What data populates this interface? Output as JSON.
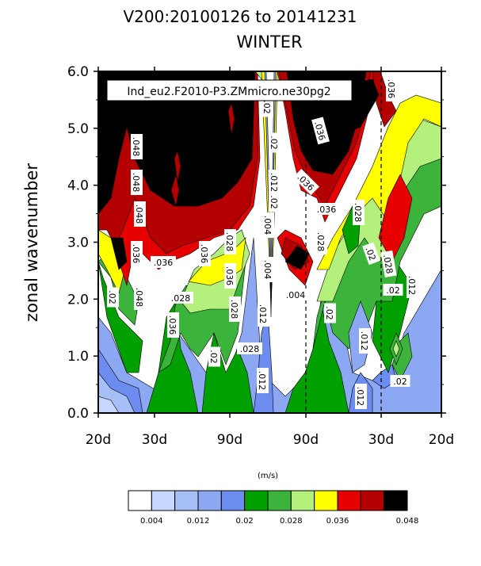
{
  "chart_data": {
    "type": "heatmap",
    "title": "V200:20100126 to 20141231",
    "subtitle": "WINTER",
    "case_label": "Ind_eu2.F2010-P3.ZMmicro.ne30pg2",
    "ylabel": "zonal wavenumber",
    "x_tick_labels": [
      "20d",
      "30d",
      "90d",
      "90d",
      "30d",
      "20d"
    ],
    "y_tick_labels": [
      "0.0",
      "1.0",
      "2.0",
      "3.0",
      "4.0",
      "5.0",
      "6.0"
    ],
    "ylim": [
      0,
      6
    ],
    "colorbar_units": "(m/s)",
    "colorbar_levels": [
      0.004,
      0.008,
      0.012,
      0.016,
      0.02,
      0.024,
      0.028,
      0.032,
      0.036,
      0.04,
      0.044,
      0.048
    ],
    "colorbar_tick_labels": [
      "0.004",
      "0.012",
      "0.02",
      "0.028",
      "0.036",
      "0.048"
    ],
    "colorbar_colors": [
      "#ffffff",
      "#c8d7ff",
      "#a6bff6",
      "#8ca8f3",
      "#6c8cf0",
      "#00a000",
      "#3cb43c",
      "#b4f07c",
      "#ffff00",
      "#e60000",
      "#b40000",
      "#000000"
    ],
    "contour_labels": [
      ".048",
      ".048",
      ".048",
      ".036",
      ".048",
      ".02",
      ".036",
      ".028",
      ".036",
      ".036",
      ".028",
      ".036",
      ".028",
      ".02",
      ".028",
      ".02",
      ".004",
      ".004",
      ".012",
      ".02",
      ".012",
      ".02",
      ".012",
      ".004",
      ".036",
      ".036",
      ".028",
      ".036",
      ".028",
      ".02",
      ".036",
      ".028",
      ".02",
      ".012",
      ".02",
      ".012",
      ".02",
      ".012"
    ],
    "grid": false
  }
}
